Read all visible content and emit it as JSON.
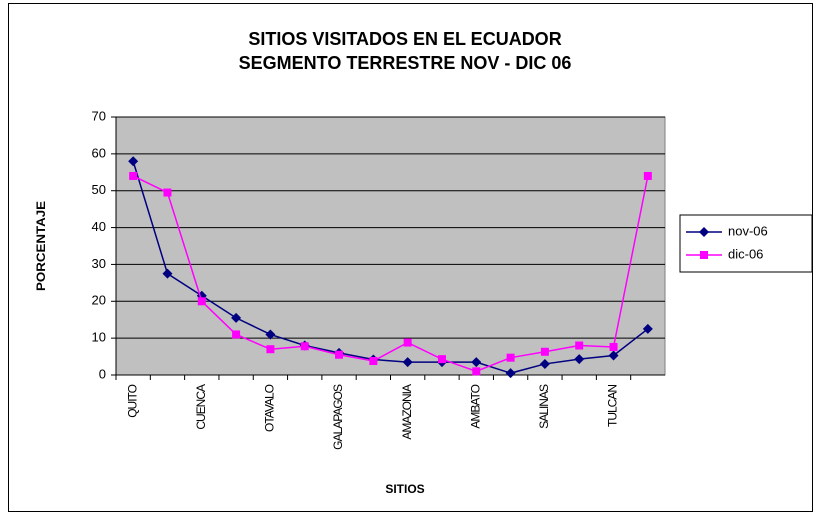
{
  "chart_data": {
    "type": "line",
    "title": [
      "SITIOS VISITADOS EN EL ECUADOR",
      "SEGMENTO TERRESTRE NOV - DIC 06"
    ],
    "x_label": "SITIOS",
    "y_label": "PORCENTAJE",
    "categories": [
      "QUITO",
      null,
      "CUENCA",
      null,
      "OTAVALO",
      null,
      "GALAPAGOS",
      null,
      "AMAZONIA",
      null,
      "AMBATO",
      null,
      "SALINAS",
      null,
      "TULCAN",
      null
    ],
    "series": [
      {
        "name": "nov-06",
        "color": "#000080",
        "marker": "diamond",
        "values": [
          58,
          27.5,
          21.5,
          15.5,
          11,
          8,
          6,
          4.2,
          3.5,
          3.5,
          3.5,
          0.5,
          3,
          4.3,
          5.3,
          12.5
        ]
      },
      {
        "name": "dic-06",
        "color": "#FF00FF",
        "marker": "square",
        "values": [
          54,
          49.5,
          20,
          11,
          7,
          7.8,
          5.5,
          3.8,
          8.8,
          4.3,
          1,
          4.7,
          6.3,
          8,
          7.6,
          54
        ]
      }
    ],
    "ylim": [
      0,
      70
    ],
    "yticks": [
      0,
      10,
      20,
      30,
      40,
      50,
      60,
      70
    ],
    "grid": true,
    "plot_background": "#C0C0C0",
    "legend": "right"
  }
}
